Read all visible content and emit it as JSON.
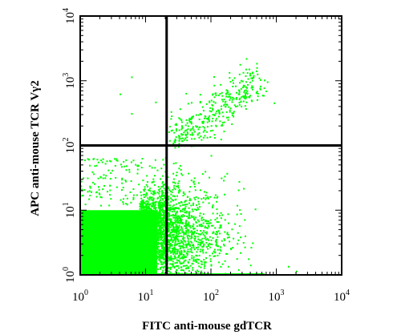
{
  "chart_data": {
    "type": "scatter",
    "xlabel": "FITC anti-mouse gdTCR",
    "ylabel": "APC anti-mouse TCR Vγ2",
    "x_scale": "log",
    "y_scale": "log",
    "xlim": [
      1,
      10000
    ],
    "ylim": [
      1,
      10000
    ],
    "x_ticks": [
      {
        "base": "10",
        "exp": "0"
      },
      {
        "base": "10",
        "exp": "1"
      },
      {
        "base": "10",
        "exp": "2"
      },
      {
        "base": "10",
        "exp": "3"
      },
      {
        "base": "10",
        "exp": "4"
      }
    ],
    "y_ticks": [
      {
        "base": "10",
        "exp": "0"
      },
      {
        "base": "10",
        "exp": "1"
      },
      {
        "base": "10",
        "exp": "2"
      },
      {
        "base": "10",
        "exp": "3"
      },
      {
        "base": "10",
        "exp": "4"
      }
    ],
    "quadrant_gates": {
      "x": 21,
      "y": 100
    },
    "point_color": "#00ff00",
    "populations": [
      {
        "x_range": [
          1,
          15
        ],
        "y_range": [
          1,
          10
        ],
        "density": "very high"
      },
      {
        "x_range": [
          15,
          700
        ],
        "y_range": [
          1,
          40
        ],
        "density": "medium"
      },
      {
        "x_range": [
          20,
          600
        ],
        "y_range": [
          80,
          1200
        ],
        "density": "low"
      },
      {
        "x_range": [
          1,
          20
        ],
        "y_range": [
          10,
          60
        ],
        "density": "low"
      }
    ],
    "grid": false,
    "legend": "none"
  }
}
